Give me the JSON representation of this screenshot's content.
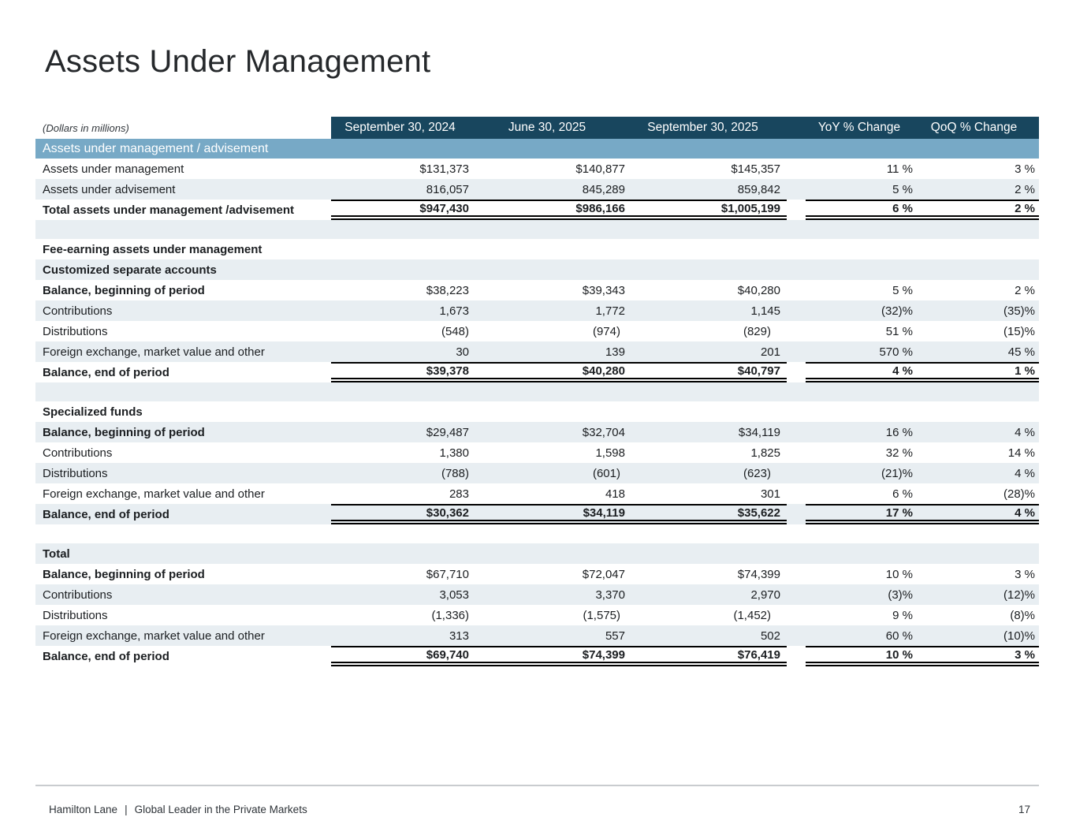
{
  "page": {
    "title": "Assets Under Management",
    "units_note": "(Dollars in millions)",
    "page_number": "17",
    "footer": {
      "brand": "Hamilton Lane",
      "separator": "|",
      "tagline": "Global Leader in the Private Markets"
    }
  },
  "colors": {
    "header_bg": "#18465e",
    "band_bg": "#77a9c6",
    "stripe_bg": "#e8eef2",
    "line": "#000000"
  },
  "table": {
    "columns": [
      "September 30, 2024",
      "June 30, 2025",
      "September 30, 2025",
      "YoY % Change",
      "QoQ % Change"
    ],
    "rows": [
      {
        "type": "band",
        "label": "Assets under management / advisement",
        "shaded": false
      },
      {
        "type": "data",
        "label": "Assets under management",
        "values": [
          "$131,373",
          "$140,877",
          "$145,357",
          "11 %",
          "3 %"
        ],
        "shaded": false
      },
      {
        "type": "data",
        "label": "Assets under advisement",
        "values": [
          "816,057",
          "845,289",
          "859,842",
          "5 %",
          "2 %"
        ],
        "shaded": true
      },
      {
        "type": "total",
        "label": "Total assets under management /advisement",
        "values": [
          "$947,430",
          "$986,166",
          "$1,005,199",
          "6 %",
          "2 %"
        ],
        "shaded": false
      },
      {
        "type": "spacer",
        "shaded": true
      },
      {
        "type": "section",
        "label": "Fee-earning assets under management",
        "shaded": false
      },
      {
        "type": "section",
        "label": "Customized separate accounts",
        "shaded": true
      },
      {
        "type": "data",
        "label": "Balance, beginning of period",
        "bold_label": true,
        "values": [
          "$38,223",
          "$39,343",
          "$40,280",
          "5 %",
          "2 %"
        ],
        "shaded": false
      },
      {
        "type": "data",
        "label": "Contributions",
        "values": [
          "1,673",
          "1,772",
          "1,145",
          "(32)%",
          "(35)%"
        ],
        "shaded": true
      },
      {
        "type": "data",
        "label": "Distributions",
        "values": [
          "(548)",
          "(974)",
          "(829)",
          "51 %",
          "(15)%"
        ],
        "shaded": false
      },
      {
        "type": "data",
        "label": "Foreign exchange, market value and other",
        "values": [
          "30",
          "139",
          "201",
          "570 %",
          "45 %"
        ],
        "shaded": true
      },
      {
        "type": "total",
        "label": "Balance, end of period",
        "values": [
          "$39,378",
          "$40,280",
          "$40,797",
          "4 %",
          "1 %"
        ],
        "shaded": false
      },
      {
        "type": "spacer",
        "shaded": true
      },
      {
        "type": "section",
        "label": "Specialized funds",
        "shaded": false
      },
      {
        "type": "data",
        "label": "Balance, beginning of period",
        "bold_label": true,
        "values": [
          "$29,487",
          "$32,704",
          "$34,119",
          "16 %",
          "4 %"
        ],
        "shaded": true
      },
      {
        "type": "data",
        "label": "Contributions",
        "values": [
          "1,380",
          "1,598",
          "1,825",
          "32 %",
          "14 %"
        ],
        "shaded": false
      },
      {
        "type": "data",
        "label": "Distributions",
        "values": [
          "(788)",
          "(601)",
          "(623)",
          "(21)%",
          "4 %"
        ],
        "shaded": true
      },
      {
        "type": "data",
        "label": "Foreign exchange, market value and other",
        "values": [
          "283",
          "418",
          "301",
          "6 %",
          "(28)%"
        ],
        "shaded": false
      },
      {
        "type": "total",
        "label": "Balance, end of period",
        "values": [
          "$30,362",
          "$34,119",
          "$35,622",
          "17 %",
          "4 %"
        ],
        "shaded": true
      },
      {
        "type": "spacer",
        "shaded": false
      },
      {
        "type": "section",
        "label": "Total",
        "shaded": true
      },
      {
        "type": "data",
        "label": "Balance, beginning of period",
        "bold_label": true,
        "values": [
          "$67,710",
          "$72,047",
          "$74,399",
          "10 %",
          "3 %"
        ],
        "shaded": false
      },
      {
        "type": "data",
        "label": "Contributions",
        "values": [
          "3,053",
          "3,370",
          "2,970",
          "(3)%",
          "(12)%"
        ],
        "shaded": true
      },
      {
        "type": "data",
        "label": "Distributions",
        "values": [
          "(1,336)",
          "(1,575)",
          "(1,452)",
          "9 %",
          "(8)%"
        ],
        "shaded": false
      },
      {
        "type": "data",
        "label": "Foreign exchange, market value and other",
        "values": [
          "313",
          "557",
          "502",
          "60 %",
          "(10)%"
        ],
        "shaded": true
      },
      {
        "type": "total",
        "label": "Balance, end of period",
        "values": [
          "$69,740",
          "$74,399",
          "$76,419",
          "10 %",
          "3 %"
        ],
        "shaded": false
      }
    ]
  }
}
